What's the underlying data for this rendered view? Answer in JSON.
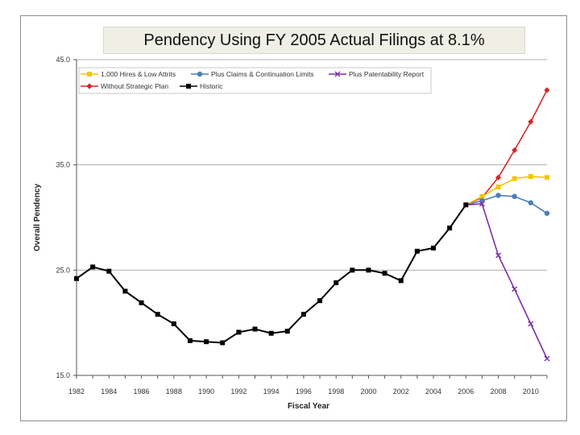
{
  "chart_data": {
    "type": "line",
    "title": "Pendency Using FY 2005 Actual Filings at 8.1%",
    "xlabel": "Fiscal Year",
    "ylabel": "Overall Pendency",
    "xlim": [
      1982,
      2011
    ],
    "ylim": [
      15.0,
      45.0
    ],
    "x_ticks": [
      1982,
      1984,
      1986,
      1988,
      1990,
      1992,
      1994,
      1996,
      1998,
      2000,
      2002,
      2004,
      2006,
      2008,
      2010
    ],
    "y_ticks": [
      "15.0",
      "25.0",
      "35.0",
      "45.0"
    ],
    "grid": true,
    "legend_position": "top-left",
    "series": [
      {
        "name": "1,000 Hires & Low Attrits",
        "color": "#f5c400",
        "marker": "square",
        "x": [
          2006,
          2007,
          2008,
          2009,
          2010,
          2011
        ],
        "y": [
          31.2,
          32.0,
          32.9,
          33.7,
          33.9,
          33.8
        ]
      },
      {
        "name": "Plus Claims & Continuation Limits",
        "color": "#4a7ebb",
        "marker": "circle",
        "x": [
          2006,
          2007,
          2008,
          2009,
          2010,
          2011
        ],
        "y": [
          31.2,
          31.6,
          32.1,
          32.0,
          31.4,
          30.4
        ]
      },
      {
        "name": "Plus Patentability Report",
        "color": "#7b2fa8",
        "marker": "x",
        "x": [
          2006,
          2007,
          2008,
          2009,
          2010,
          2011
        ],
        "y": [
          31.2,
          31.3,
          26.4,
          23.2,
          19.9,
          16.6
        ]
      },
      {
        "name": "Without Strategic Plan",
        "color": "#d62728",
        "marker": "diamond",
        "x": [
          2006,
          2007,
          2008,
          2009,
          2010,
          2011
        ],
        "y": [
          31.2,
          31.9,
          33.8,
          36.4,
          39.1,
          42.1
        ]
      },
      {
        "name": "Historic",
        "color": "#000000",
        "marker": "square",
        "x": [
          1982,
          1983,
          1984,
          1985,
          1986,
          1987,
          1988,
          1989,
          1990,
          1991,
          1992,
          1993,
          1994,
          1995,
          1996,
          1997,
          1998,
          1999,
          2000,
          2001,
          2002,
          2003,
          2004,
          2005,
          2006
        ],
        "y": [
          24.2,
          25.3,
          24.9,
          23.0,
          21.9,
          20.8,
          19.9,
          18.3,
          18.2,
          18.1,
          19.1,
          19.4,
          19.0,
          19.2,
          20.8,
          22.1,
          23.8,
          25.0,
          25.0,
          24.7,
          24.0,
          26.8,
          27.1,
          29.0,
          31.2
        ]
      }
    ]
  }
}
